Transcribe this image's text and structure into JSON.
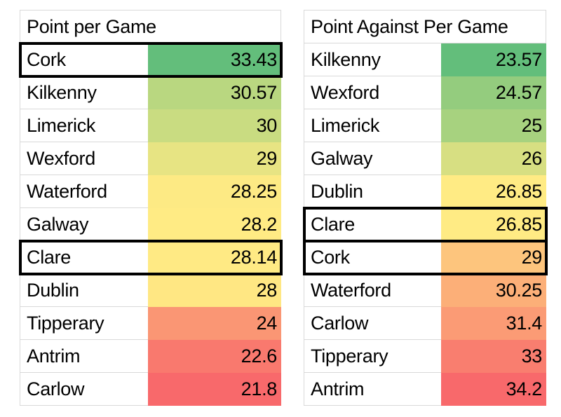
{
  "page": {
    "background": "#ffffff"
  },
  "colors": {
    "gridline": "#d9d9d9",
    "highlight_border": "#000000",
    "scale_low": "#F8696B",
    "scale_mid": "#FFEB84",
    "scale_high": "#63BE7B"
  },
  "chart_data": [
    {
      "type": "table",
      "title": "Point per Game",
      "columns": [
        "Team",
        "Points per game"
      ],
      "color_scale": "3-color scale: green (high) to yellow to red (low)",
      "highlighted_teams": [
        "Cork",
        "Clare"
      ],
      "rows": [
        {
          "team": "Cork",
          "value": 33.43,
          "fill": "#63BE7B",
          "highlighted": true
        },
        {
          "team": "Kilkenny",
          "value": 30.57,
          "fill": "#B9D780",
          "highlighted": false
        },
        {
          "team": "Limerick",
          "value": 30,
          "fill": "#C9DC81",
          "highlighted": false
        },
        {
          "team": "Wexford",
          "value": 29,
          "fill": "#E7E483",
          "highlighted": false
        },
        {
          "team": "Waterford",
          "value": 28.25,
          "fill": "#FDEA84",
          "highlighted": false
        },
        {
          "team": "Galway",
          "value": 28.2,
          "fill": "#FFEB84",
          "highlighted": false
        },
        {
          "team": "Clare",
          "value": 28.14,
          "fill": "#FFEA84",
          "highlighted": true
        },
        {
          "team": "Dublin",
          "value": 28,
          "fill": "#FFE783",
          "highlighted": false
        },
        {
          "team": "Tipperary",
          "value": 24,
          "fill": "#FA9674",
          "highlighted": false
        },
        {
          "team": "Antrim",
          "value": 22.6,
          "fill": "#F9796E",
          "highlighted": false
        },
        {
          "team": "Carlow",
          "value": 21.8,
          "fill": "#F8696B",
          "highlighted": false
        }
      ]
    },
    {
      "type": "table",
      "title": "Point Against Per Game",
      "columns": [
        "Team",
        "Points against per game"
      ],
      "color_scale": "3-color scale: green (low) to yellow to red (high)",
      "highlighted_teams": [
        "Clare",
        "Cork"
      ],
      "rows": [
        {
          "team": "Kilkenny",
          "value": 23.57,
          "fill": "#63BE7B",
          "highlighted": false
        },
        {
          "team": "Wexford",
          "value": 24.57,
          "fill": "#94CC7E",
          "highlighted": false
        },
        {
          "team": "Limerick",
          "value": 25,
          "fill": "#A7D27F",
          "highlighted": false
        },
        {
          "team": "Galway",
          "value": 26,
          "fill": "#D7DF82",
          "highlighted": false
        },
        {
          "team": "Dublin",
          "value": 26.85,
          "fill": "#FFEB84",
          "highlighted": false
        },
        {
          "team": "Clare",
          "value": 26.85,
          "fill": "#FFEB84",
          "highlighted": true
        },
        {
          "team": "Cork",
          "value": 29,
          "fill": "#FDC57D",
          "highlighted": true
        },
        {
          "team": "Waterford",
          "value": 30.25,
          "fill": "#FCAF78",
          "highlighted": false
        },
        {
          "team": "Carlow",
          "value": 31.4,
          "fill": "#FB9B75",
          "highlighted": false
        },
        {
          "team": "Tipperary",
          "value": 33,
          "fill": "#F97E6F",
          "highlighted": false
        },
        {
          "team": "Antrim",
          "value": 34.2,
          "fill": "#F8696B",
          "highlighted": false
        }
      ]
    }
  ]
}
